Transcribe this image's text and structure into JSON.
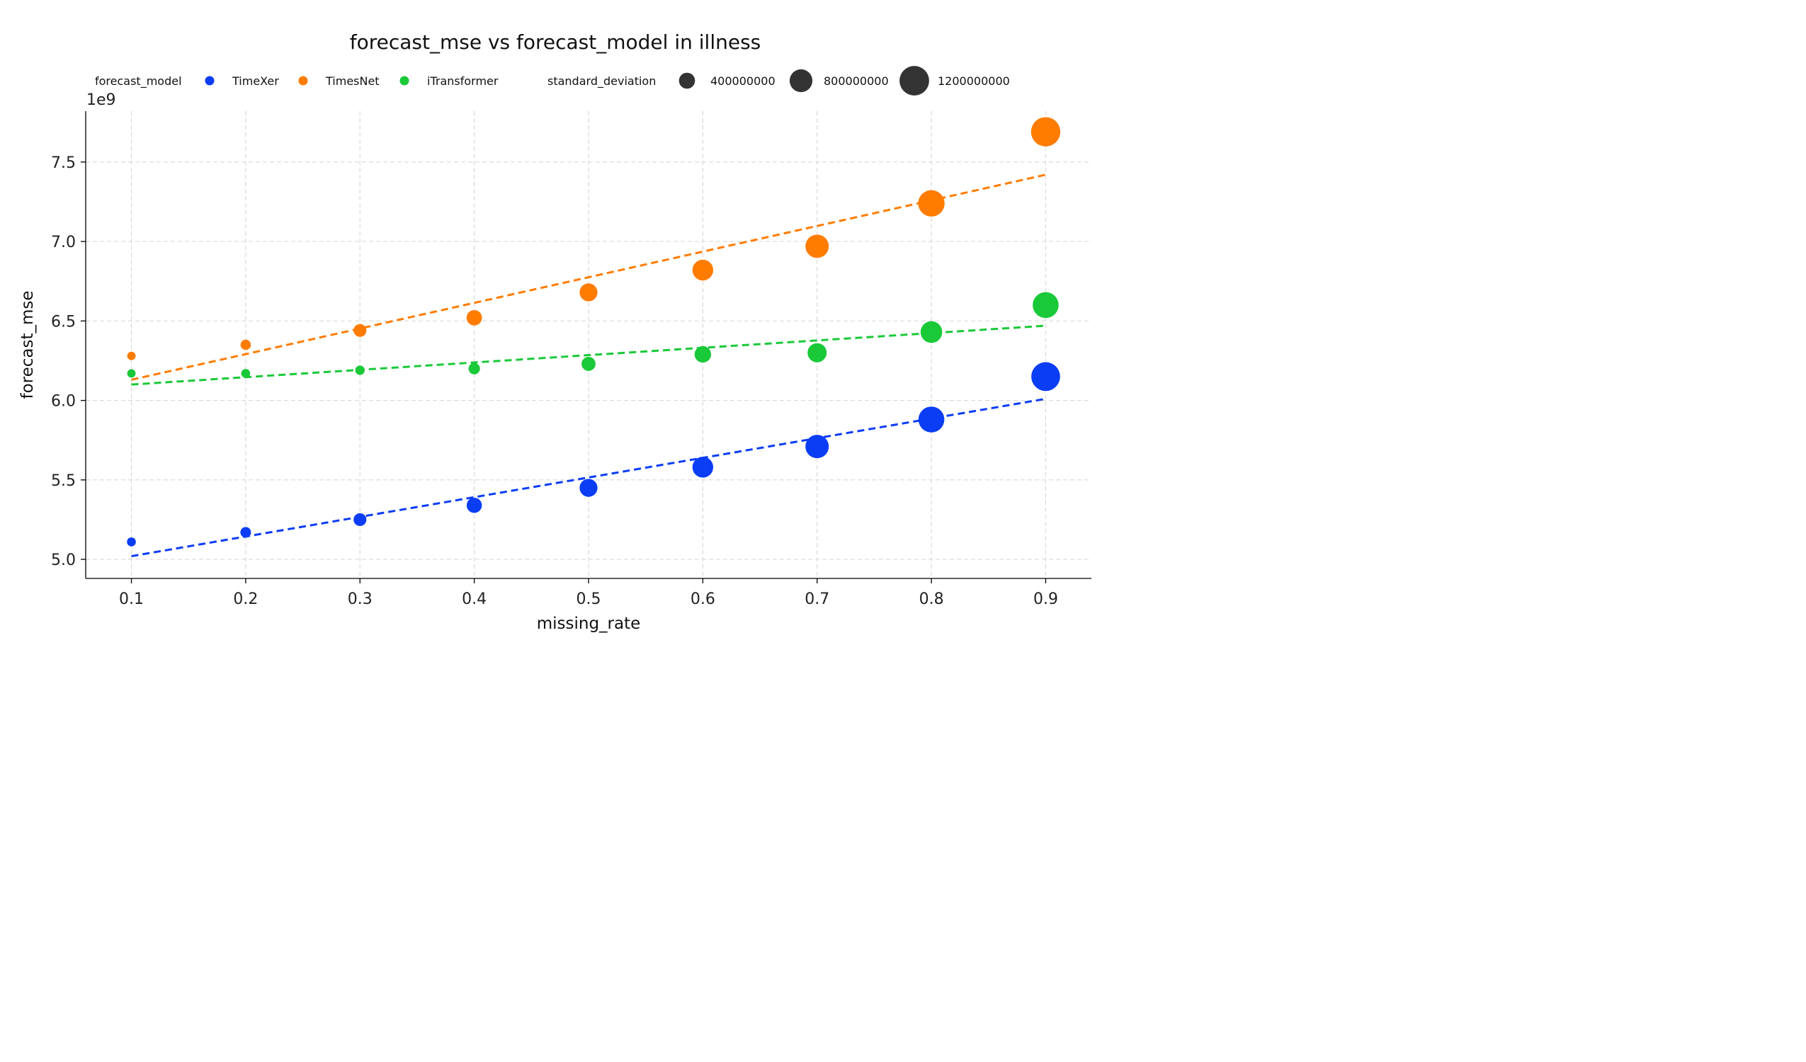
{
  "chart_data": {
    "type": "scatter",
    "title": "forecast_mse vs forecast_model in illness",
    "xlabel": "missing_rate",
    "ylabel": "forecast_mse",
    "y_offset_label": "1e9",
    "y_scale": 1000000000,
    "xlim": [
      0.06,
      0.94
    ],
    "ylim": [
      4.88,
      7.82
    ],
    "x_ticks": [
      0.1,
      0.2,
      0.3,
      0.4,
      0.5,
      0.6,
      0.7,
      0.8,
      0.9
    ],
    "x_tick_labels": [
      "0.1",
      "0.2",
      "0.3",
      "0.4",
      "0.5",
      "0.6",
      "0.7",
      "0.8",
      "0.9"
    ],
    "y_ticks": [
      5.0,
      5.5,
      6.0,
      6.5,
      7.0,
      7.5
    ],
    "y_tick_labels": [
      "5.0",
      "5.5",
      "6.0",
      "6.5",
      "7.0",
      "7.5"
    ],
    "grid": true,
    "legend_placement": "top",
    "hue_legend_title": "forecast_model",
    "size_legend_title": "standard_deviation",
    "size_legend": [
      {
        "label": "400000000",
        "value": 400000000
      },
      {
        "label": "800000000",
        "value": 800000000
      },
      {
        "label": "1200000000",
        "value": 1200000000
      }
    ],
    "x": [
      0.1,
      0.2,
      0.3,
      0.4,
      0.5,
      0.6,
      0.7,
      0.8,
      0.9
    ],
    "series": [
      {
        "name": "TimeXer",
        "color": "#0b3df5",
        "values": [
          5.11,
          5.17,
          5.25,
          5.34,
          5.45,
          5.58,
          5.71,
          5.88,
          6.15
        ],
        "std": [
          150000000,
          250000000,
          380000000,
          520000000,
          680000000,
          850000000,
          1000000000,
          1150000000,
          1320000000
        ],
        "trend": [
          5.02,
          6.01
        ]
      },
      {
        "name": "TimesNet",
        "color": "#ff7c00",
        "values": [
          6.28,
          6.35,
          6.44,
          6.52,
          6.68,
          6.82,
          6.97,
          7.24,
          7.69
        ],
        "std": [
          120000000,
          230000000,
          380000000,
          530000000,
          680000000,
          850000000,
          1000000000,
          1180000000,
          1350000000
        ],
        "trend": [
          6.13,
          7.42
        ]
      },
      {
        "name": "iTransformer",
        "color": "#1ac938",
        "values": [
          6.17,
          6.17,
          6.19,
          6.2,
          6.23,
          6.29,
          6.3,
          6.43,
          6.6
        ],
        "std": [
          120000000,
          150000000,
          180000000,
          300000000,
          450000000,
          600000000,
          750000000,
          900000000,
          1150000000
        ],
        "trend": [
          6.1,
          6.47
        ]
      }
    ]
  }
}
